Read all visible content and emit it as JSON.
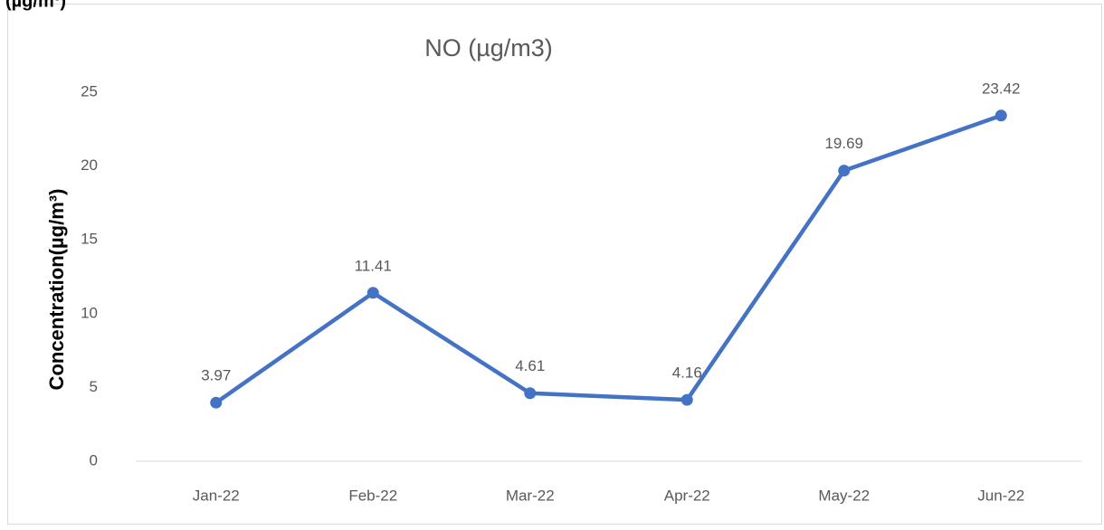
{
  "page_fragment": "(µg/m³)",
  "chart_data": {
    "type": "line",
    "title": "NO (µg/m3)",
    "y_label": "Concentration(µg/m³)",
    "categories": [
      "Jan-22",
      "Feb-22",
      "Mar-22",
      "Apr-22",
      "May-22",
      "Jun-22"
    ],
    "series": [
      {
        "name": "NO",
        "color": "#4472c4",
        "values": [
          3.97,
          11.41,
          4.61,
          4.16,
          19.69,
          23.42
        ]
      }
    ],
    "ylim": [
      0,
      25
    ],
    "yticks": [
      0,
      5,
      10,
      15,
      20,
      25
    ],
    "grid": false,
    "data_labels": true
  }
}
